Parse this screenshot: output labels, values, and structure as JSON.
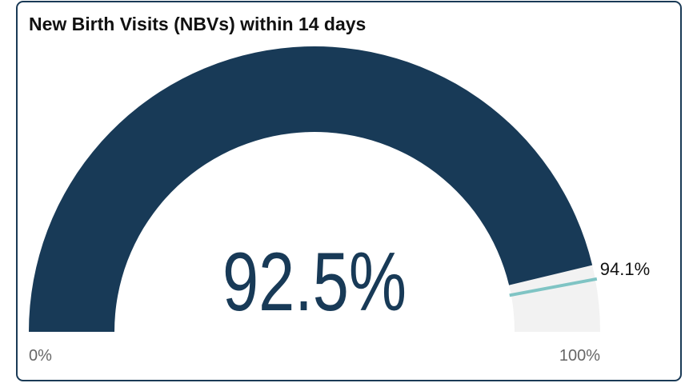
{
  "chart_data": {
    "type": "gauge",
    "title": "New Birth Visits (NBVs) within 14 days",
    "values": [
      92.5
    ],
    "value_labels": [
      "92.5%"
    ],
    "color": "#183a57",
    "track_color": "#f2f2f2",
    "target": 94.1,
    "target_label": "94.1%",
    "target_color": "#7fc4c4",
    "ylim": [
      0,
      100
    ],
    "yticks": [
      {
        "value": 0,
        "label": "0%"
      },
      {
        "value": 100,
        "label": "100%"
      }
    ]
  }
}
